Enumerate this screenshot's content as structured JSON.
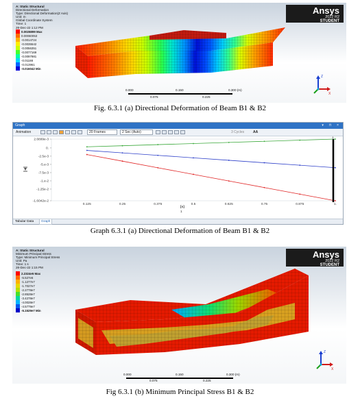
{
  "figure1": {
    "info_lines": [
      "A: Static Structural",
      "Directional Deformation",
      "Type: Directional Deformation(Z Axis)",
      "Unit: m",
      "Global Coordinate System",
      "Time: 1",
      "28-Dec-22 1:12 PM"
    ],
    "legend": [
      "0.0026899 Max",
      "0.00060053",
      "-0.0014724",
      "-0.0035542",
      "-0.0056351",
      "-0.0077169",
      "-0.0097981",
      "-0.01188",
      "-0.013961",
      "-0.016042 Min"
    ],
    "legend_colors": [
      "#ff0000",
      "#ff6a00",
      "#ffb000",
      "#ffee00",
      "#c8ff00",
      "#46ff2a",
      "#00ffa0",
      "#00d6ff",
      "#0066ff",
      "#0000d8"
    ],
    "brand": {
      "logo": "Ansys",
      "version": "2022 R2",
      "edition": "STUDENT"
    },
    "scale": {
      "top_labels": [
        "0.000",
        "0.150",
        "0.300 (m)"
      ],
      "bottom_labels": [
        "0.075",
        "0.225"
      ]
    },
    "triad": {
      "z": "Z",
      "x": "X"
    },
    "caption": "Fig. 6.3.1 (a) Directional Deformation of Beam B1 & B2"
  },
  "graph": {
    "window_title": "Graph",
    "window_controls": "▾ ⊓ × ",
    "toolbar": {
      "animation": "Animation",
      "frames": "20 Frames",
      "duration": "2 Sec (Auto)",
      "cycles": "3 Cycles",
      "aa": "AA"
    },
    "y_tick_labels": [
      "2.6899e-3",
      "0.",
      "-2.5e-3",
      "-5.e-3",
      "-7.5e-3",
      "-1.e-2",
      "-1.25e-2",
      "-1.6042e-2"
    ],
    "x_tick_labels": [
      "0.125",
      "0.25",
      "0.375",
      "0.5",
      "0.625",
      "0.75",
      "0.875",
      "1."
    ],
    "x_unit": "[s]",
    "marker": "1",
    "tabs": [
      "Tabular Data",
      "Graph"
    ],
    "caption": "Graph 6.3.1 (a) Directional Deformation of Beam B1 & B2"
  },
  "chart_data": {
    "type": "line",
    "x": [
      0.125,
      0.25,
      0.375,
      0.5,
      0.625,
      0.75,
      0.875,
      1.0
    ],
    "series": [
      {
        "color": "#3aa83a",
        "values": [
          0.00034,
          0.00067,
          0.00101,
          0.00134,
          0.00168,
          0.00202,
          0.00235,
          0.00269
        ]
      },
      {
        "color": "#2d3fc9",
        "values": [
          -0.00075,
          -0.0015,
          -0.00225,
          -0.003,
          -0.00375,
          -0.0045,
          -0.00525,
          -0.006
        ]
      },
      {
        "color": "#e02424",
        "values": [
          -0.00201,
          -0.00401,
          -0.00602,
          -0.00802,
          -0.01003,
          -0.01203,
          -0.01404,
          -0.016042
        ]
      }
    ],
    "xlim": [
      0.0,
      1.0
    ],
    "ylim": [
      -0.016042,
      0.0026899
    ],
    "xlabel": "[s]",
    "ylabel": "",
    "grid": false
  },
  "figure2": {
    "info_lines": [
      "A: Static Structural",
      "Minimum Principal Stress",
      "Type: Minimum Principal Stress",
      "Unit: Pa",
      "Time: 1 s",
      "28-Dec-22 1:15 PM"
    ],
    "legend": [
      "2.2324e5 Max",
      "-5.527e6",
      "-1.1277e7",
      "-1.7027e7",
      "-2.2778e7",
      "-2.8528e7",
      "-3.4278e7",
      "-4.0028e7",
      "-4.5779e7",
      "-5.1529e7 Min"
    ],
    "legend_colors": [
      "#ff0000",
      "#ff6a00",
      "#ffb000",
      "#e8d800",
      "#b4e000",
      "#46e02a",
      "#00d8a0",
      "#00b4ff",
      "#0058f0",
      "#0000c8"
    ],
    "brand": {
      "logo": "Ansys",
      "version": "2022 R2",
      "edition": "STUDENT"
    },
    "scale": {
      "top_labels": [
        "0.000",
        "0.150",
        "0.300 (m)"
      ],
      "bottom_labels": [
        "0.075",
        "0.225"
      ]
    },
    "triad": {
      "z": "Z",
      "x": "X"
    },
    "caption": "Fig 6.3.1 (b) Minimum Principal Stress B1 & B2"
  }
}
